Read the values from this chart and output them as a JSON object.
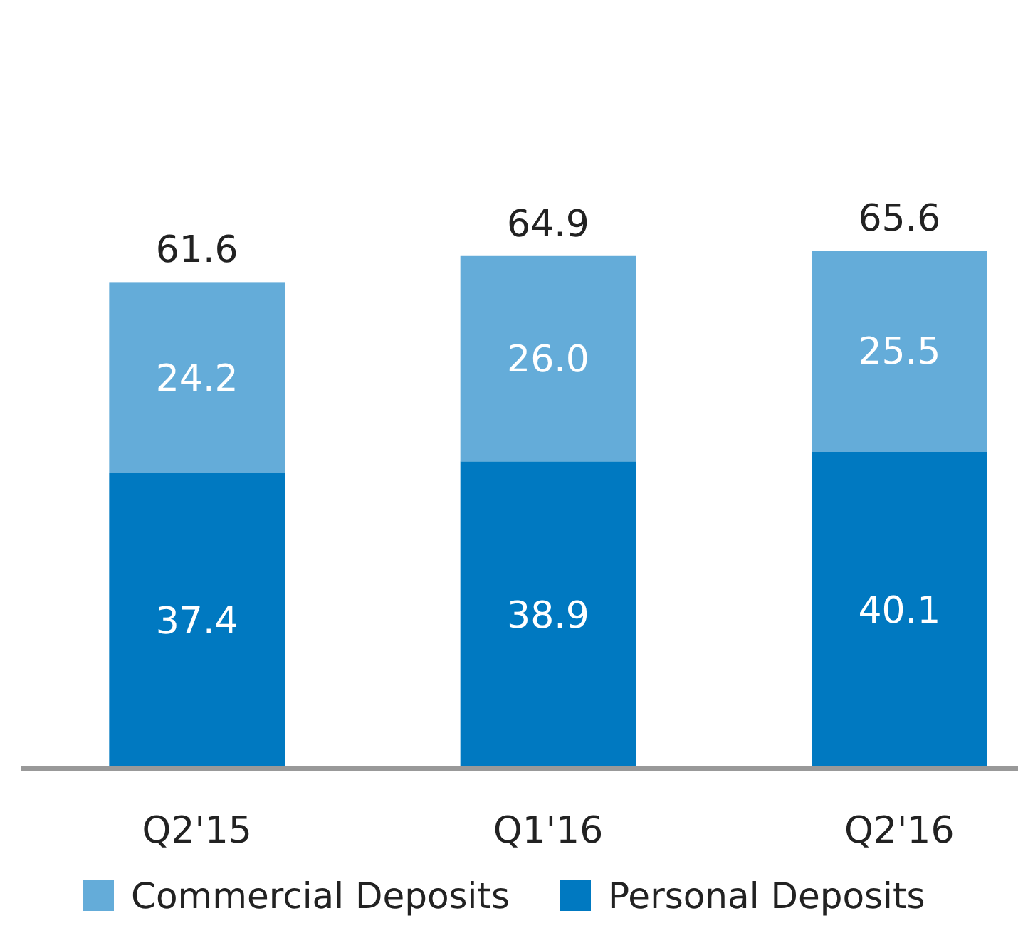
{
  "chart_data": {
    "type": "bar",
    "stacked": true,
    "categories": [
      "Q2'15",
      "Q1'16",
      "Q2'16"
    ],
    "series": [
      {
        "name": "Personal Deposits",
        "color": "#0079c1",
        "values": [
          37.4,
          38.9,
          40.1
        ],
        "value_labels": [
          "37.4",
          "38.9",
          "40.1"
        ]
      },
      {
        "name": "Commercial Deposits",
        "color": "#64acd9",
        "values": [
          24.2,
          26.0,
          25.5
        ],
        "value_labels": [
          "24.2",
          "26.0",
          "25.5"
        ]
      }
    ],
    "totals": [
      "61.6",
      "64.9",
      "65.6"
    ],
    "legend": "bottom"
  }
}
